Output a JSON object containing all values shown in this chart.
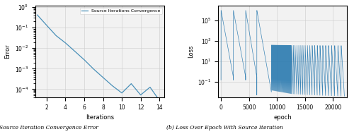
{
  "left": {
    "xlabel": "Iterations",
    "ylabel": "Error",
    "legend_label": "Source Iterations Convergence",
    "caption": "(a) Source Iteration Convergence Error",
    "x": [
      1,
      2,
      3,
      4,
      5,
      6,
      7,
      8,
      9,
      10,
      11,
      12,
      13,
      14
    ],
    "y": [
      0.42,
      0.13,
      0.041,
      0.018,
      0.007,
      0.0027,
      0.00095,
      0.00037,
      0.000145,
      6.5e-05,
      0.000185,
      5.2e-05,
      0.000125,
      2.8e-05
    ],
    "color": "#4a90b8",
    "xlim": [
      0.8,
      14.5
    ],
    "ylim": [
      4e-05,
      1.2
    ]
  },
  "right": {
    "xlabel": "epoch",
    "ylabel": "Loss",
    "caption": "(b) Loss Over Epoch With Source Iteration",
    "color": "#2a7ab0",
    "xlim": [
      -500,
      22500
    ],
    "ylim": [
      0.003,
      3000000
    ]
  },
  "bg_color": "#f0f0f0",
  "line_color": "#4a90b8"
}
